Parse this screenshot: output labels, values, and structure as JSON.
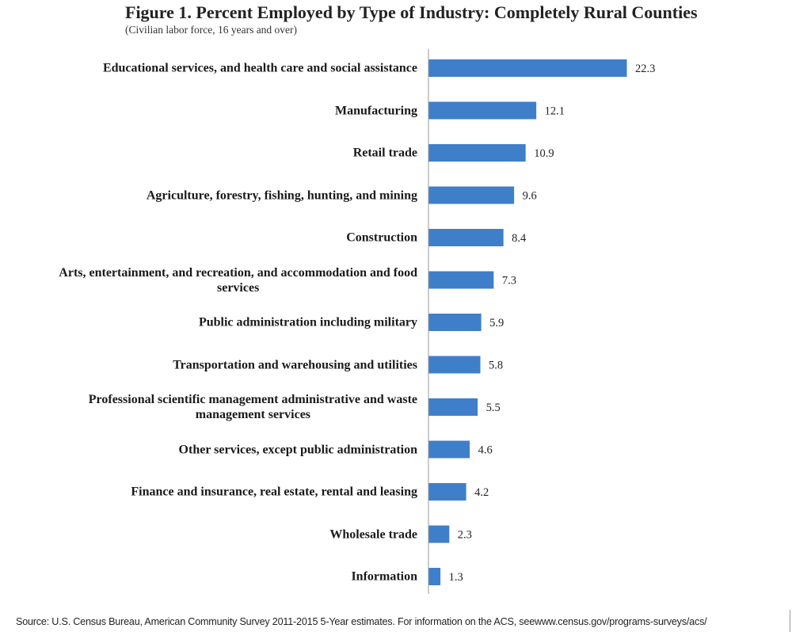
{
  "chart_data": {
    "type": "bar",
    "orientation": "horizontal",
    "title": "Figure 1. Percent Employed by Type of Industry: Completely Rural Counties",
    "subtitle": "(Civilian labor force, 16 years and over)",
    "categories": [
      "Educational services, and health care and social assistance",
      "Manufacturing",
      "Retail trade",
      "Agriculture, forestry, fishing, hunting, and mining",
      "Construction",
      "Arts, entertainment, and recreation, and accommodation and food\nservices",
      "Public administration including military",
      "Transportation and warehousing and utilities",
      "Professional scientific management administrative and waste\nmanagement services",
      "Other services, except public administration",
      "Finance and insurance, real estate, rental and leasing",
      "Wholesale trade",
      "Information"
    ],
    "values": [
      22.3,
      12.1,
      10.9,
      9.6,
      8.4,
      7.3,
      5.9,
      5.8,
      5.5,
      4.6,
      4.2,
      2.3,
      1.3
    ],
    "data_labels": [
      "22.3",
      "12.1",
      "10.9",
      "9.6",
      "8.4",
      "7.3",
      "5.9",
      "5.8",
      "5.5",
      "4.6",
      "4.2",
      "2.3",
      "1.3"
    ],
    "xlim": [
      0,
      22.3
    ],
    "bar_color": "#3f7fc9",
    "grid": false,
    "source": "Source: U.S. Census Bureau, American Community Survey 2011-2015  5-Year estimates. For information on the ACS, seewww.census.gov/programs-surveys/acs/"
  }
}
